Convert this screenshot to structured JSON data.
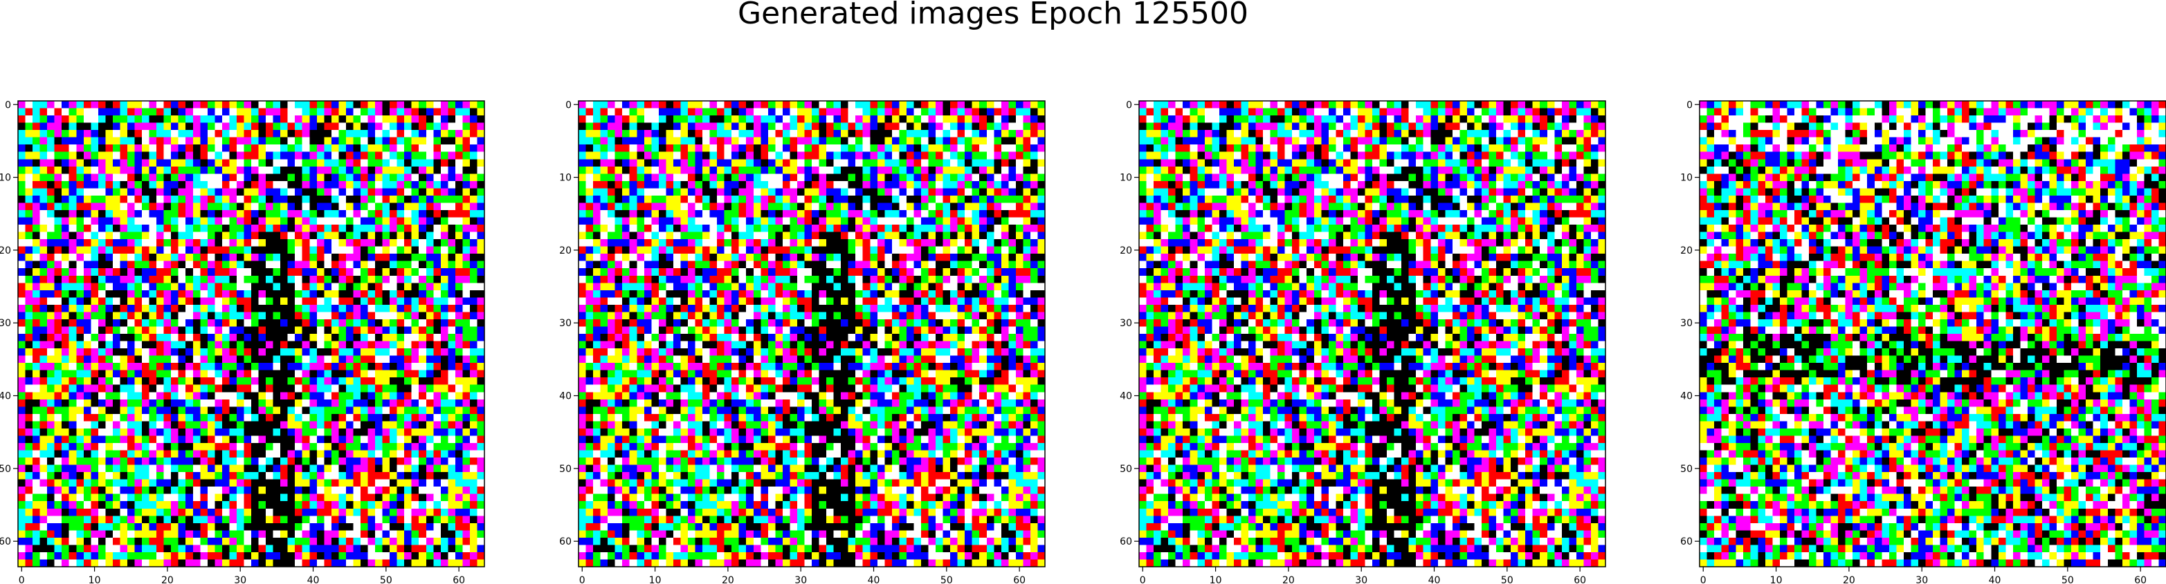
{
  "figure": {
    "title": "Generated images Epoch 125500"
  },
  "chart_data": [
    {
      "type": "heatmap",
      "title": "",
      "xlabel": "",
      "ylabel": "",
      "xlim": [
        0,
        64
      ],
      "ylim": [
        64,
        0
      ],
      "xticks": [
        0,
        10,
        20,
        30,
        40,
        50,
        60
      ],
      "yticks": [
        0,
        10,
        20,
        30,
        40,
        50,
        60
      ],
      "grid": false,
      "size": [
        64,
        64
      ],
      "palette": [
        "#ff0000",
        "#00ff00",
        "#0000ff",
        "#ffff00",
        "#ff00ff",
        "#00ffff",
        "#ffffff",
        "#000000"
      ],
      "pattern": "vertical-stripe"
    },
    {
      "type": "heatmap",
      "title": "",
      "xlabel": "",
      "ylabel": "",
      "xlim": [
        0,
        64
      ],
      "ylim": [
        64,
        0
      ],
      "xticks": [
        0,
        10,
        20,
        30,
        40,
        50,
        60
      ],
      "yticks": [
        0,
        10,
        20,
        30,
        40,
        50,
        60
      ],
      "grid": false,
      "size": [
        64,
        64
      ],
      "palette": [
        "#ff0000",
        "#00ff00",
        "#0000ff",
        "#ffff00",
        "#ff00ff",
        "#00ffff",
        "#ffffff",
        "#000000"
      ],
      "pattern": "vertical-stripe"
    },
    {
      "type": "heatmap",
      "title": "",
      "xlabel": "",
      "ylabel": "",
      "xlim": [
        0,
        64
      ],
      "ylim": [
        64,
        0
      ],
      "xticks": [
        0,
        10,
        20,
        30,
        40,
        50,
        60
      ],
      "yticks": [
        0,
        10,
        20,
        30,
        40,
        50,
        60
      ],
      "grid": false,
      "size": [
        64,
        64
      ],
      "palette": [
        "#ff0000",
        "#00ff00",
        "#0000ff",
        "#ffff00",
        "#ff00ff",
        "#00ffff",
        "#ffffff",
        "#000000"
      ],
      "pattern": "vertical-stripe"
    },
    {
      "type": "heatmap",
      "title": "",
      "xlabel": "",
      "ylabel": "",
      "xlim": [
        0,
        64
      ],
      "ylim": [
        64,
        0
      ],
      "xticks": [
        0,
        10,
        20,
        30,
        40,
        50,
        60
      ],
      "yticks": [
        0,
        10,
        20,
        30,
        40,
        50,
        60
      ],
      "grid": false,
      "size": [
        64,
        64
      ],
      "palette": [
        "#ff0000",
        "#00ff00",
        "#0000ff",
        "#ffff00",
        "#ff00ff",
        "#00ffff",
        "#ffffff",
        "#000000"
      ],
      "pattern": "horizontal-band"
    }
  ]
}
